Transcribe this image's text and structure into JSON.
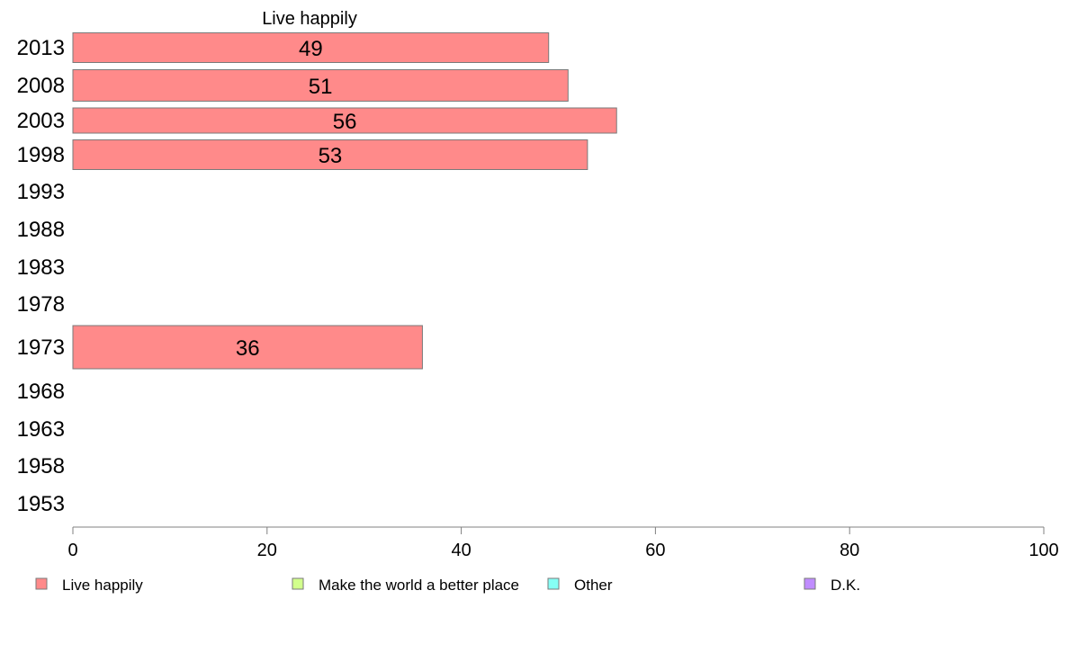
{
  "chart_data": {
    "type": "bar",
    "orientation": "horizontal",
    "title": "Live happily",
    "categories": [
      "2013",
      "2008",
      "2003",
      "1998",
      "1993",
      "1988",
      "1983",
      "1978",
      "1973",
      "1968",
      "1963",
      "1958",
      "1953"
    ],
    "series": [
      {
        "name": "Live happily",
        "color": "#ff8a8a",
        "values": [
          49,
          51,
          56,
          53,
          null,
          null,
          null,
          null,
          36,
          null,
          null,
          null,
          null
        ]
      }
    ],
    "xlim": [
      0,
      100
    ],
    "xticks": [
      0,
      20,
      40,
      60,
      80,
      100
    ],
    "xlabel": "",
    "ylabel": "",
    "grid": false,
    "legend": {
      "position": "bottom",
      "entries": [
        {
          "label": "Live happily",
          "color": "#ff8a8a"
        },
        {
          "label": "Make the world a better place",
          "color": "#d2ff8c"
        },
        {
          "label": "Other",
          "color": "#86fff5"
        },
        {
          "label": "D.K.",
          "color": "#c08cff"
        }
      ]
    }
  }
}
